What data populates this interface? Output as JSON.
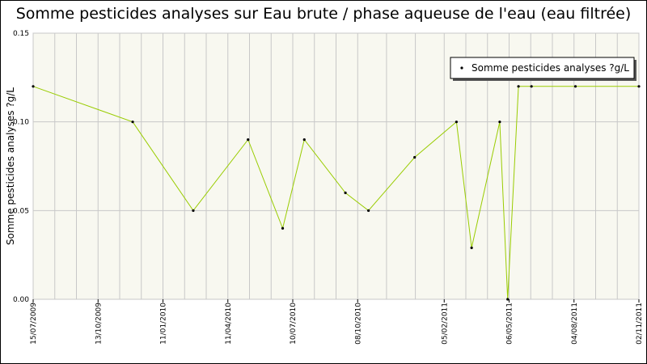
{
  "title": "Somme pesticides analyses sur Eau brute / phase aqueuse de l'eau (eau filtrée)",
  "colors": {
    "plot_bg": "#f8f8f0",
    "grid": "#c8c8c8",
    "line": "#99cc00",
    "marker": "#000000"
  },
  "chart_data": {
    "type": "line",
    "title": "Somme pesticides analyses sur Eau brute / phase aqueuse de l'eau (eau filtrée)",
    "xlabel": "",
    "ylabel": "Somme pesticides analyses ?g/L",
    "ylim": [
      0,
      0.15
    ],
    "xlim": [
      "2009-07-15",
      "2011-11-02"
    ],
    "grid": true,
    "legend_position": "top-right",
    "y_ticks": [
      "0.00",
      "0.05",
      "0.10",
      "0.15"
    ],
    "x_ticks": [
      {
        "date": "2009-07-15",
        "label": "15/07/2009"
      },
      {
        "date": "2009-10-13",
        "label": "13/10/2009"
      },
      {
        "date": "2010-01-11",
        "label": "11/01/2010"
      },
      {
        "date": "2010-04-11",
        "label": "11/04/2010"
      },
      {
        "date": "2010-07-10",
        "label": "10/07/2010"
      },
      {
        "date": "2010-10-08",
        "label": "08/10/2010"
      },
      {
        "date": "2011-02-05",
        "label": "05/02/2011"
      },
      {
        "date": "2011-05-06",
        "label": "06/05/2011"
      },
      {
        "date": "2011-08-04",
        "label": "04/08/2011"
      },
      {
        "date": "2011-11-02",
        "label": "02/11/2011"
      }
    ],
    "series": [
      {
        "name": "Somme pesticides analyses ?g/L",
        "x": [
          "2009-07-15",
          "2009-11-30",
          "2010-02-22",
          "2010-05-09",
          "2010-06-26",
          "2010-07-26",
          "2010-09-21",
          "2010-10-23",
          "2010-12-26",
          "2011-02-22",
          "2011-03-15",
          "2011-04-23",
          "2011-05-04",
          "2011-05-19",
          "2011-06-06",
          "2011-08-06",
          "2011-11-02"
        ],
        "y": [
          0.12,
          0.1,
          0.05,
          0.09,
          0.04,
          0.09,
          0.06,
          0.05,
          0.08,
          0.1,
          0.029,
          0.1,
          0.0,
          0.12,
          0.12,
          0.12,
          0.12
        ]
      }
    ]
  }
}
